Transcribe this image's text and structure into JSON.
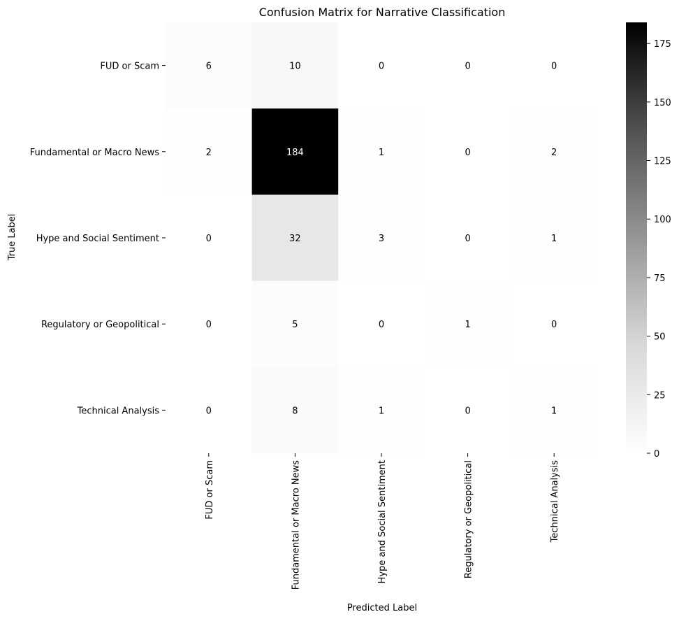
{
  "chart_data": {
    "type": "heatmap",
    "title": "Confusion Matrix for Narrative Classification",
    "xlabel": "Predicted Label",
    "ylabel": "True Label",
    "x_categories": [
      "FUD or Scam",
      "Fundamental or Macro News",
      "Hype and Social Sentiment",
      "Regulatory or Geopolitical",
      "Technical Analysis"
    ],
    "y_categories": [
      "FUD or Scam",
      "Fundamental or Macro News",
      "Hype and Social Sentiment",
      "Regulatory or Geopolitical",
      "Technical Analysis"
    ],
    "matrix": [
      [
        6,
        10,
        0,
        0,
        0
      ],
      [
        2,
        184,
        1,
        0,
        2
      ],
      [
        0,
        32,
        3,
        0,
        1
      ],
      [
        0,
        5,
        0,
        1,
        0
      ],
      [
        0,
        8,
        1,
        0,
        1
      ]
    ],
    "colorbar": {
      "min": 0,
      "max": 184,
      "ticks": [
        0,
        25,
        50,
        75,
        100,
        125,
        150,
        175
      ],
      "colormap": "Greys",
      "low_color": "#ffffff",
      "high_color": "#000000"
    },
    "annotations": "cell counts",
    "grid": false
  }
}
